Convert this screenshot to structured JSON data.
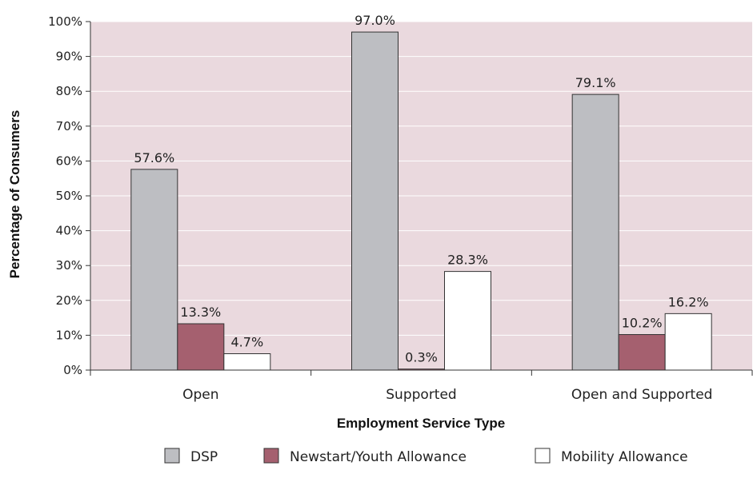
{
  "chart_data": {
    "type": "bar",
    "xlabel": "Employment Service Type",
    "ylabel": "Percentage of Consumers",
    "ylim": [
      0,
      100
    ],
    "yticks": [
      0,
      10,
      20,
      30,
      40,
      50,
      60,
      70,
      80,
      90,
      100
    ],
    "tick_suffix": "%",
    "categories": [
      "Open",
      "Supported",
      "Open and Supported"
    ],
    "series": [
      {
        "name": "DSP",
        "color": "#bdbec2",
        "values": [
          57.6,
          97.0,
          79.1
        ],
        "labels": [
          "57.6%",
          "97.0%",
          "79.1%"
        ]
      },
      {
        "name": "Newstart/Youth Allowance",
        "color": "#a5606f",
        "values": [
          13.3,
          0.3,
          10.2
        ],
        "labels": [
          "13.3%",
          "0.3%",
          "10.2%"
        ]
      },
      {
        "name": "Mobility Allowance",
        "color": "#ffffff",
        "values": [
          4.7,
          28.3,
          16.2
        ],
        "labels": [
          "4.7%",
          "28.3%",
          "16.2%"
        ]
      }
    ],
    "grid": true,
    "plot_background": "#ead9de",
    "legend_position": "bottom"
  }
}
